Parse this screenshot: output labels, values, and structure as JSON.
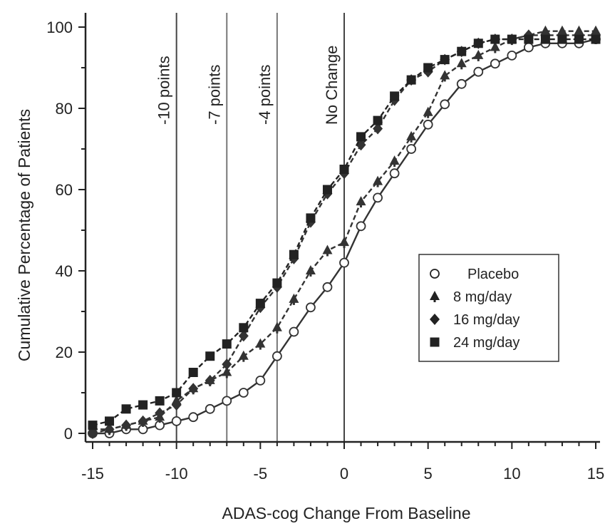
{
  "chart_data": {
    "type": "line",
    "xlabel": "ADAS-cog Change From Baseline",
    "ylabel": "Cumulative Percentage of Patients",
    "xlim": [
      -15.5,
      15.5
    ],
    "ylim": [
      0,
      100
    ],
    "x_ticks": [
      -15,
      -10,
      -5,
      0,
      5,
      10,
      15
    ],
    "y_ticks": [
      0,
      20,
      40,
      60,
      80,
      100
    ],
    "x_tick_labels": [
      "-15",
      "-10",
      "-5",
      "0",
      "5",
      "10",
      "15"
    ],
    "y_tick_labels": [
      "0",
      "20",
      "40",
      "60",
      "80",
      "100"
    ],
    "reference_lines": [
      {
        "x": -10,
        "label": "-10 points"
      },
      {
        "x": -7,
        "label": "-7 points"
      },
      {
        "x": -4,
        "label": "-4 points"
      },
      {
        "x": 0,
        "label": "No Change"
      }
    ],
    "legend_position": "right",
    "x": [
      -15,
      -14,
      -13,
      -12,
      -11,
      -10,
      -9,
      -8,
      -7,
      -6,
      -5,
      -4,
      -3,
      -2,
      -1,
      0,
      1,
      2,
      3,
      4,
      5,
      6,
      7,
      8,
      9,
      10,
      11,
      12,
      13,
      14,
      15
    ],
    "series": [
      {
        "name": "Placebo",
        "marker": "circle-open",
        "dash": "solid",
        "color": "#333333",
        "values": [
          0,
          0,
          1,
          1,
          2,
          3,
          4,
          6,
          8,
          10,
          13,
          19,
          25,
          31,
          36,
          42,
          51,
          58,
          64,
          70,
          76,
          81,
          86,
          89,
          91,
          93,
          95,
          96,
          96,
          96,
          97
        ]
      },
      {
        "name": "8 mg/day",
        "marker": "club",
        "dash": "dashed",
        "color": "#333333",
        "values": [
          1,
          1,
          2,
          3,
          4,
          8,
          11,
          13,
          15,
          19,
          22,
          26,
          33,
          40,
          45,
          47,
          57,
          62,
          67,
          73,
          79,
          88,
          91,
          93,
          95,
          97,
          98,
          99,
          99,
          99,
          99
        ]
      },
      {
        "name": "16 mg/day",
        "marker": "diamond",
        "dash": "dashed",
        "color": "#333333",
        "values": [
          0,
          1,
          2,
          3,
          5,
          7,
          11,
          13,
          17,
          24,
          31,
          36,
          43,
          52,
          59,
          64,
          71,
          75,
          82,
          87,
          89,
          92,
          94,
          96,
          97,
          97,
          98,
          98,
          98,
          98,
          98
        ]
      },
      {
        "name": "24 mg/day",
        "marker": "square",
        "dash": "dashed",
        "color": "#222222",
        "values": [
          2,
          3,
          6,
          7,
          8,
          10,
          15,
          19,
          22,
          26,
          32,
          37,
          44,
          53,
          60,
          65,
          73,
          77,
          83,
          87,
          90,
          92,
          94,
          96,
          97,
          97,
          97,
          97,
          97,
          97,
          97
        ]
      }
    ]
  }
}
